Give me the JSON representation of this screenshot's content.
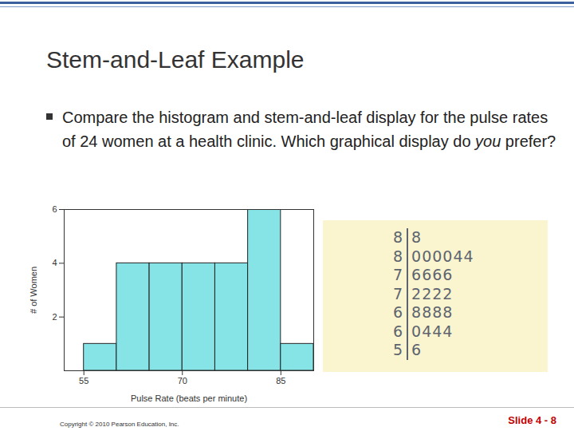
{
  "slide": {
    "title": "Stem-and-Leaf Example",
    "bullet_before": "Compare the histogram and stem-and-leaf display for the pulse rates of 24 women at a health clinic. Which graphical display do ",
    "bullet_emphasis": "you",
    "bullet_after": " prefer?"
  },
  "chart_data": {
    "type": "histogram",
    "bins": [
      55,
      60,
      65,
      70,
      75,
      80,
      85,
      90
    ],
    "values": [
      1,
      4,
      4,
      4,
      4,
      6,
      1
    ],
    "color": "#86e4e6",
    "x_label": "Pulse Rate (beats per minute)",
    "y_label": "# of Women",
    "xlim": [
      52,
      90
    ],
    "xticks": [
      55,
      70,
      85
    ],
    "ylim": [
      0,
      6
    ],
    "yticks": [
      2,
      4,
      6
    ]
  },
  "stem_and_leaf": {
    "rows": [
      {
        "stem": "8",
        "leaves": "8"
      },
      {
        "stem": "8",
        "leaves": "000044"
      },
      {
        "stem": "7",
        "leaves": "6666"
      },
      {
        "stem": "7",
        "leaves": "2222"
      },
      {
        "stem": "6",
        "leaves": "8888"
      },
      {
        "stem": "6",
        "leaves": "0444"
      },
      {
        "stem": "5",
        "leaves": "6"
      }
    ]
  },
  "footer": {
    "copyright": "Copyright © 2010 Pearson Education, Inc.",
    "slide_number": "Slide 4 - 8"
  }
}
